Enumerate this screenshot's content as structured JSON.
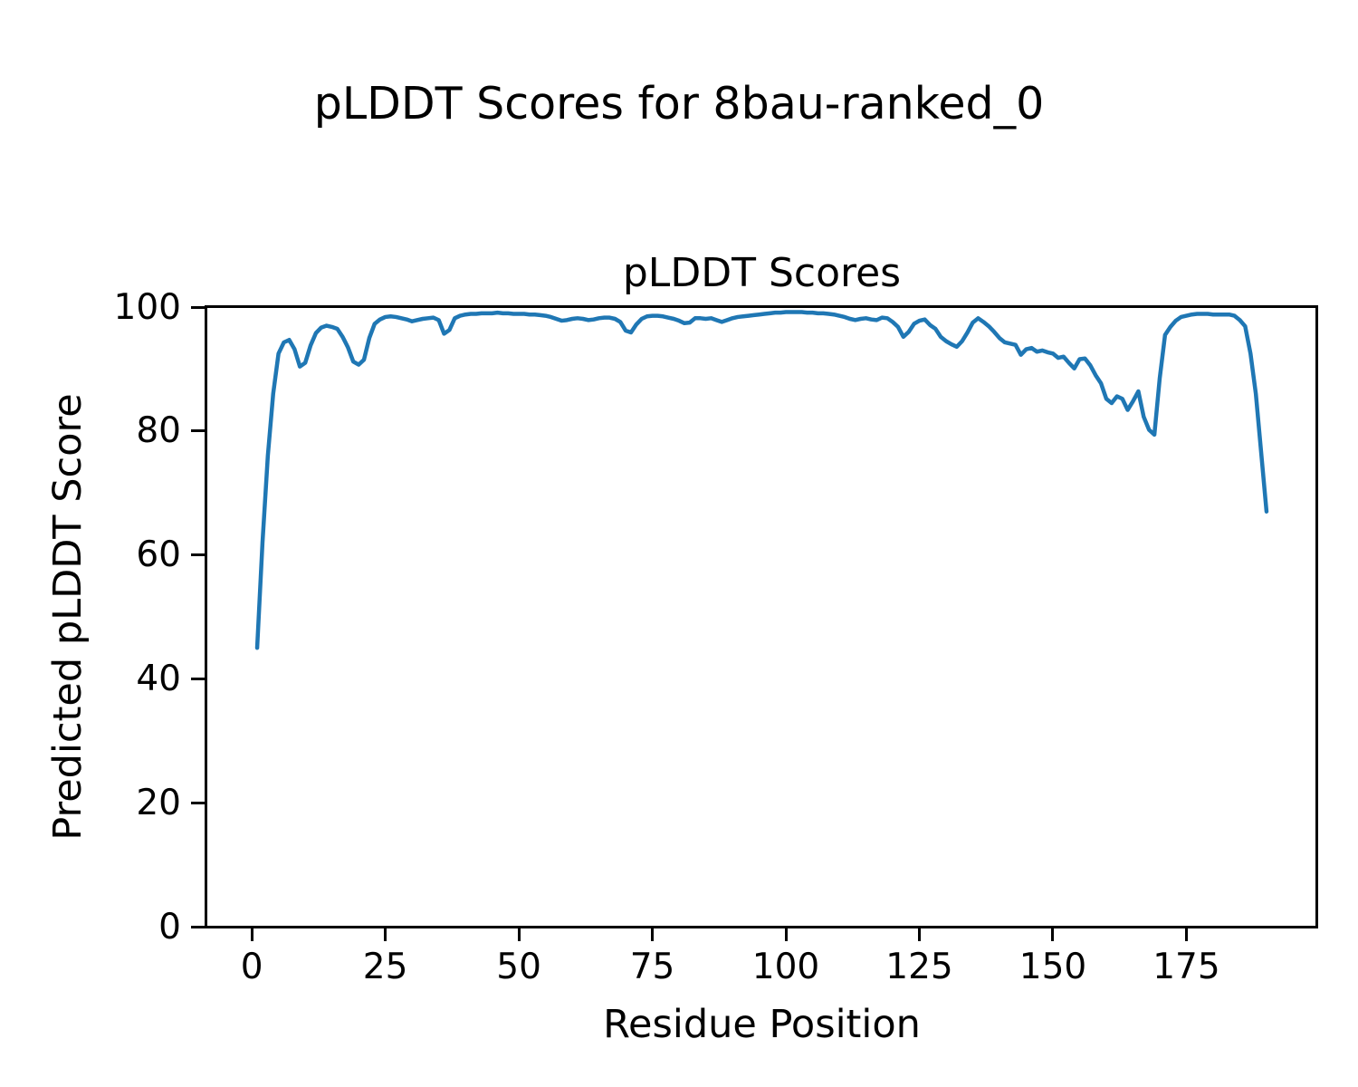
{
  "figure": {
    "suptitle": "pLDDT Scores for 8bau-ranked_0",
    "background_color": "#ffffff",
    "text_color": "#000000"
  },
  "chart_data": {
    "type": "line",
    "title": "pLDDT Scores",
    "xlabel": "Residue Position",
    "ylabel": "Predicted pLDDT Score",
    "xlim": [
      -8.5,
      199.5
    ],
    "ylim": [
      0,
      100
    ],
    "xticks": [
      0,
      25,
      50,
      75,
      100,
      125,
      150,
      175
    ],
    "yticks": [
      0,
      20,
      40,
      60,
      80,
      100
    ],
    "grid": false,
    "legend": "none",
    "series": [
      {
        "name": "pLDDT",
        "color": "#1f77b4",
        "line_width": 4.5,
        "x_start": 1,
        "x_step": 1,
        "values": [
          45.0,
          62.0,
          76.0,
          86.0,
          92.5,
          94.3,
          94.7,
          93.2,
          90.4,
          91.0,
          93.8,
          95.8,
          96.7,
          97.0,
          96.8,
          96.5,
          95.2,
          93.5,
          91.2,
          90.7,
          91.5,
          95.0,
          97.3,
          98.0,
          98.4,
          98.5,
          98.4,
          98.2,
          98.0,
          97.7,
          97.9,
          98.1,
          98.2,
          98.3,
          97.9,
          95.7,
          96.3,
          98.2,
          98.6,
          98.8,
          98.9,
          98.9,
          99.0,
          99.0,
          99.0,
          99.1,
          99.0,
          99.0,
          98.9,
          98.9,
          98.9,
          98.8,
          98.8,
          98.7,
          98.6,
          98.4,
          98.1,
          97.8,
          97.9,
          98.1,
          98.2,
          98.1,
          97.9,
          98.0,
          98.2,
          98.3,
          98.3,
          98.1,
          97.6,
          96.2,
          95.9,
          97.2,
          98.1,
          98.5,
          98.6,
          98.6,
          98.5,
          98.3,
          98.1,
          97.8,
          97.4,
          97.5,
          98.2,
          98.2,
          98.1,
          98.2,
          97.9,
          97.6,
          97.9,
          98.2,
          98.4,
          98.5,
          98.6,
          98.7,
          98.8,
          98.9,
          99.0,
          99.1,
          99.1,
          99.2,
          99.2,
          99.2,
          99.2,
          99.1,
          99.1,
          99.0,
          99.0,
          98.9,
          98.8,
          98.6,
          98.4,
          98.1,
          97.9,
          98.1,
          98.2,
          98.0,
          97.9,
          98.3,
          98.2,
          97.6,
          96.8,
          95.2,
          96.0,
          97.3,
          97.8,
          98.0,
          97.1,
          96.5,
          95.2,
          94.5,
          94.0,
          93.6,
          94.5,
          95.9,
          97.5,
          98.2,
          97.6,
          96.9,
          96.0,
          95.0,
          94.3,
          94.1,
          93.9,
          92.3,
          93.2,
          93.4,
          92.8,
          93.0,
          92.7,
          92.5,
          91.8,
          92.0,
          91.0,
          90.1,
          91.6,
          91.7,
          90.6,
          89.0,
          87.7,
          85.2,
          84.5,
          85.6,
          85.2,
          83.4,
          84.8,
          86.4,
          82.3,
          80.2,
          79.4,
          88.5,
          95.5,
          96.8,
          97.8,
          98.4,
          98.6,
          98.8,
          98.9,
          98.9,
          98.9,
          98.8,
          98.8,
          98.8,
          98.8,
          98.6,
          97.9,
          96.9,
          92.5,
          86.0,
          76.5,
          67.0
        ]
      }
    ]
  }
}
